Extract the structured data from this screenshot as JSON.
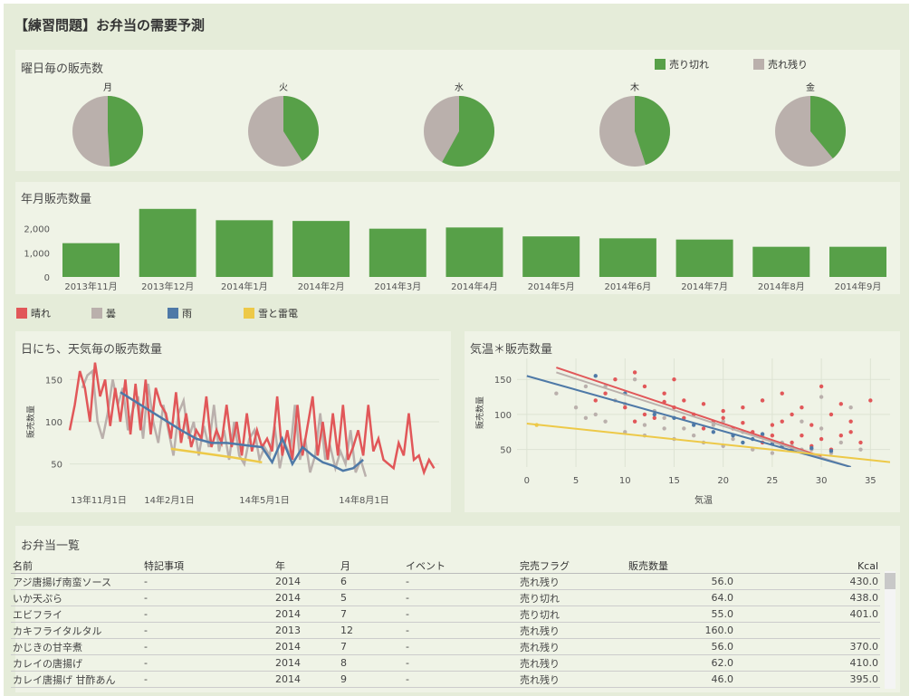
{
  "title": "【練習問題】お弁当の需要予測",
  "colors": {
    "sold_out": "#57a048",
    "left": "#bab0ac",
    "sunny": "#e15759",
    "cloudy": "#bab0ac",
    "rain": "#4e79a7",
    "snow": "#edc948"
  },
  "pies": {
    "title": "曜日毎の販売数",
    "legend": [
      {
        "label": "売り切れ",
        "color": "#57a048"
      },
      {
        "label": "売れ残り",
        "color": "#bab0ac"
      }
    ],
    "chart_data": {
      "type": "pie",
      "categories": [
        "月",
        "火",
        "水",
        "木",
        "金"
      ],
      "series": [
        {
          "name": "売り切れ",
          "values": [
            0.49,
            0.41,
            0.58,
            0.45,
            0.39
          ]
        },
        {
          "name": "売れ残り",
          "values": [
            0.51,
            0.59,
            0.42,
            0.55,
            0.61
          ]
        }
      ]
    }
  },
  "monthly": {
    "title": "年月販売数量",
    "chart_data": {
      "type": "bar",
      "categories": [
        "2013年11月",
        "2013年12月",
        "2014年1月",
        "2014年2月",
        "2014年3月",
        "2014年4月",
        "2014年5月",
        "2014年6月",
        "2014年7月",
        "2014年8月",
        "2014年9月"
      ],
      "values": [
        1400,
        2820,
        2350,
        2320,
        2000,
        2050,
        1680,
        1600,
        1550,
        1250,
        1250
      ],
      "ytick_labels": [
        "2,000",
        "1,000",
        "0"
      ],
      "yticks": [
        2000,
        1000,
        0
      ],
      "ylim": [
        0,
        3000
      ]
    }
  },
  "weather_legend": [
    {
      "label": "晴れ",
      "color": "#e15759"
    },
    {
      "label": "曇",
      "color": "#bab0ac"
    },
    {
      "label": "雨",
      "color": "#4e79a7"
    },
    {
      "label": "雪と雷電",
      "color": "#edc948"
    }
  ],
  "daily": {
    "title": "日にち、天気毎の販売数量",
    "chart_data": {
      "type": "line",
      "ylabel": "販売数量",
      "ylim": [
        25,
        175
      ],
      "yticks": [
        50,
        100,
        150
      ],
      "xtick_labels": [
        "13年11月1日",
        "14年2月1日",
        "14年5月1日",
        "14年8月1日"
      ],
      "series": [
        {
          "name": "晴れ",
          "values": [
            90,
            120,
            160,
            140,
            100,
            170,
            130,
            150,
            95,
            140,
            100,
            150,
            85,
            145,
            90,
            150,
            85,
            140,
            120,
            110,
            80,
            135,
            75,
            110,
            70,
            90,
            80,
            130,
            70,
            90,
            75,
            120,
            70,
            100,
            60,
            110,
            65,
            90,
            70,
            80,
            65,
            130,
            60,
            90,
            55,
            120,
            60,
            95,
            130,
            60,
            100,
            55,
            110,
            60,
            120,
            55,
            70,
            90,
            60,
            120,
            65,
            80,
            55,
            50,
            45,
            75,
            60,
            110,
            55,
            60,
            40,
            55,
            45
          ],
          "x": [
            0,
            2,
            4,
            6,
            8,
            10,
            12,
            14,
            16,
            18,
            20,
            22,
            24,
            26,
            28,
            30,
            32,
            34,
            36,
            38,
            40,
            42,
            44,
            46,
            48,
            50,
            52,
            54,
            56,
            58,
            60,
            62,
            64,
            66,
            68,
            70,
            72,
            74,
            76,
            78,
            80,
            82,
            84,
            86,
            88,
            90,
            92,
            94,
            96,
            98,
            100,
            102,
            104,
            106,
            108,
            110,
            112,
            114,
            116,
            118,
            120,
            122,
            124,
            126,
            128,
            130,
            132,
            134,
            136,
            138,
            140,
            142,
            144
          ]
        },
        {
          "name": "曇",
          "values": [
            140,
            155,
            160,
            100,
            80,
            110,
            150,
            120,
            140,
            90,
            115,
            130,
            80,
            145,
            100,
            75,
            120,
            90,
            60,
            110,
            125,
            80,
            100,
            60,
            95,
            70,
            120,
            65,
            90,
            55,
            100,
            60,
            50,
            80,
            90,
            55,
            70,
            60,
            95,
            45,
            75,
            60,
            120,
            55,
            80,
            40,
            60,
            110,
            55,
            70,
            45,
            65,
            50,
            90,
            40,
            55,
            35
          ],
          "x": [
            5,
            7,
            9,
            11,
            13,
            15,
            17,
            19,
            21,
            23,
            25,
            27,
            29,
            31,
            33,
            35,
            37,
            39,
            41,
            43,
            45,
            47,
            49,
            51,
            53,
            55,
            57,
            59,
            61,
            63,
            65,
            67,
            69,
            71,
            73,
            75,
            77,
            79,
            81,
            83,
            85,
            87,
            89,
            91,
            93,
            95,
            97,
            99,
            101,
            103,
            105,
            107,
            109,
            111,
            113,
            115,
            117
          ]
        },
        {
          "name": "雨",
          "values": [
            135,
            120,
            105,
            90,
            80,
            75,
            75,
            72,
            70,
            52,
            80,
            50,
            70,
            60,
            52,
            48,
            42,
            45,
            55
          ],
          "x": [
            20,
            28,
            36,
            44,
            50,
            56,
            62,
            70,
            76,
            80,
            84,
            88,
            92,
            96,
            100,
            104,
            108,
            112,
            116
          ]
        },
        {
          "name": "雪と雷電",
          "values": [
            68,
            63,
            58,
            52
          ],
          "x": [
            40,
            52,
            64,
            76
          ]
        }
      ]
    }
  },
  "scatter": {
    "title": "気温＊販売数量",
    "chart_data": {
      "type": "scatter",
      "xlabel": "気温",
      "ylabel": "販売数量",
      "xlim": [
        -1,
        37
      ],
      "ylim": [
        25,
        180
      ],
      "xticks": [
        0,
        5,
        10,
        15,
        20,
        25,
        30,
        35
      ],
      "yticks": [
        50,
        100,
        150
      ],
      "series": [
        {
          "name": "晴れ",
          "points": [
            [
              7,
              120
            ],
            [
              9,
              150
            ],
            [
              11,
              160
            ],
            [
              12,
              140
            ],
            [
              14,
              130
            ],
            [
              15,
              110
            ],
            [
              16,
              120
            ],
            [
              17,
              100
            ],
            [
              18,
              115
            ],
            [
              19,
              90
            ],
            [
              20,
              95
            ],
            [
              21,
              80
            ],
            [
              22,
              88
            ],
            [
              23,
              75
            ],
            [
              24,
              120
            ],
            [
              25,
              70
            ],
            [
              26,
              90
            ],
            [
              27,
              60
            ],
            [
              28,
              110
            ],
            [
              29,
              85
            ],
            [
              30,
              65
            ],
            [
              31,
              100
            ],
            [
              32,
              70
            ],
            [
              33,
              90
            ],
            [
              34,
              60
            ],
            [
              35,
              120
            ],
            [
              12,
              100
            ],
            [
              13,
              95
            ],
            [
              10,
              110
            ],
            [
              8,
              130
            ],
            [
              11,
              90
            ],
            [
              15,
              150
            ],
            [
              18,
              80
            ],
            [
              22,
              110
            ],
            [
              24,
              60
            ],
            [
              26,
              130
            ],
            [
              28,
              70
            ],
            [
              30,
              140
            ],
            [
              33,
              75
            ],
            [
              16,
              95
            ],
            [
              20,
              105
            ],
            [
              29,
              55
            ],
            [
              31,
              50
            ],
            [
              25,
              85
            ],
            [
              14,
              118
            ],
            [
              27,
              100
            ],
            [
              32,
              115
            ]
          ]
        },
        {
          "name": "曇",
          "points": [
            [
              3,
              130
            ],
            [
              5,
              110
            ],
            [
              6,
              140
            ],
            [
              7,
              100
            ],
            [
              8,
              90
            ],
            [
              9,
              120
            ],
            [
              10,
              75
            ],
            [
              11,
              150
            ],
            [
              12,
              85
            ],
            [
              13,
              105
            ],
            [
              14,
              95
            ],
            [
              15,
              65
            ],
            [
              16,
              80
            ],
            [
              17,
              70
            ],
            [
              18,
              60
            ],
            [
              19,
              85
            ],
            [
              20,
              55
            ],
            [
              21,
              65
            ],
            [
              22,
              75
            ],
            [
              23,
              50
            ],
            [
              24,
              70
            ],
            [
              25,
              45
            ],
            [
              26,
              60
            ],
            [
              27,
              55
            ],
            [
              28,
              90
            ],
            [
              29,
              50
            ],
            [
              30,
              80
            ],
            [
              31,
              45
            ],
            [
              32,
              60
            ],
            [
              33,
              110
            ],
            [
              34,
              50
            ],
            [
              6,
              95
            ],
            [
              8,
              140
            ],
            [
              10,
              115
            ],
            [
              12,
              70
            ],
            [
              14,
              80
            ],
            [
              20,
              90
            ],
            [
              24,
              120
            ],
            [
              28,
              50
            ],
            [
              30,
              125
            ]
          ]
        },
        {
          "name": "雨",
          "points": [
            [
              7,
              155
            ],
            [
              10,
              130
            ],
            [
              13,
              100
            ],
            [
              15,
              95
            ],
            [
              17,
              85
            ],
            [
              19,
              75
            ],
            [
              21,
              70
            ],
            [
              22,
              60
            ],
            [
              23,
              65
            ],
            [
              24,
              72
            ],
            [
              25,
              58
            ],
            [
              26,
              55
            ],
            [
              27,
              50
            ],
            [
              29,
              52
            ],
            [
              31,
              48
            ]
          ]
        },
        {
          "name": "雪と雷電",
          "points": [
            [
              1,
              85
            ]
          ]
        }
      ],
      "trend_lines": [
        {
          "name": "晴れ",
          "start": [
            3,
            167
          ],
          "end": [
            30,
            40
          ]
        },
        {
          "name": "曇",
          "start": [
            3,
            160
          ],
          "end": [
            33,
            25
          ]
        },
        {
          "name": "雨",
          "start": [
            0,
            155
          ],
          "end": [
            33,
            25
          ]
        },
        {
          "name": "雪と雷電",
          "start": [
            0,
            87
          ],
          "end": [
            37,
            32
          ]
        }
      ]
    }
  },
  "table": {
    "title": "お弁当一覧",
    "columns": [
      "名前",
      "特記事項",
      "年",
      "月",
      "イベント",
      "完売フラグ",
      "販売数量",
      "Kcal"
    ],
    "rows": [
      [
        "アジ唐揚げ南蛮ソース",
        "-",
        "2014",
        "6",
        "-",
        "売れ残り",
        "56.0",
        "430.0"
      ],
      [
        "いか天ぷら",
        "-",
        "2014",
        "5",
        "-",
        "売り切れ",
        "64.0",
        "438.0"
      ],
      [
        "エビフライ",
        "-",
        "2014",
        "7",
        "-",
        "売り切れ",
        "55.0",
        "401.0"
      ],
      [
        "カキフライタルタル",
        "-",
        "2013",
        "12",
        "-",
        "売れ残り",
        "160.0",
        ""
      ],
      [
        "かじきの甘辛煮",
        "-",
        "2014",
        "7",
        "-",
        "売れ残り",
        "56.0",
        "370.0"
      ],
      [
        "カレイの唐揚げ",
        "-",
        "2014",
        "8",
        "-",
        "売れ残り",
        "62.0",
        "410.0"
      ],
      [
        "カレイ唐揚げ 甘酢あん",
        "-",
        "2014",
        "9",
        "-",
        "売れ残り",
        "46.0",
        "395.0"
      ]
    ]
  }
}
